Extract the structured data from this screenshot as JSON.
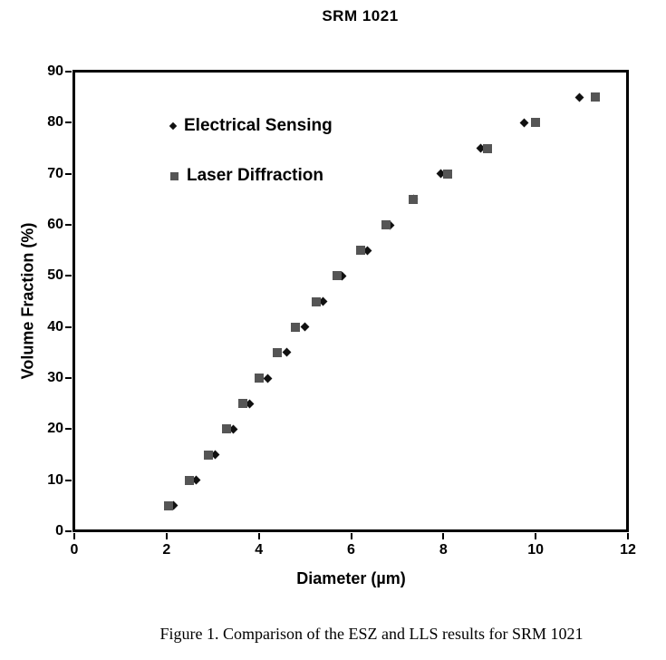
{
  "page": {
    "caption": "Figure 1. Comparison of the ESZ and LLS results for SRM 1021"
  },
  "chart_data": {
    "type": "scatter",
    "title": "SRM 1021",
    "xlabel": "Diameter (µm)",
    "ylabel": "Volume Fraction (%)",
    "xlim": [
      0,
      12
    ],
    "ylim": [
      0,
      90
    ],
    "x_ticks": [
      0,
      2,
      4,
      6,
      8,
      10,
      12
    ],
    "y_ticks": [
      0,
      10,
      20,
      30,
      40,
      50,
      60,
      70,
      80,
      90
    ],
    "grid": false,
    "legend_position": "upper-left-inside",
    "series": [
      {
        "name": "Electrical Sensing",
        "marker": "diamond",
        "color": "#111111",
        "points": [
          {
            "x": 2.15,
            "y": 5
          },
          {
            "x": 2.65,
            "y": 10
          },
          {
            "x": 3.05,
            "y": 15
          },
          {
            "x": 3.45,
            "y": 20
          },
          {
            "x": 3.8,
            "y": 25
          },
          {
            "x": 4.2,
            "y": 30
          },
          {
            "x": 4.6,
            "y": 35
          },
          {
            "x": 5.0,
            "y": 40
          },
          {
            "x": 5.4,
            "y": 45
          },
          {
            "x": 5.8,
            "y": 50
          },
          {
            "x": 6.35,
            "y": 55
          },
          {
            "x": 6.85,
            "y": 60
          },
          {
            "x": 7.35,
            "y": 65
          },
          {
            "x": 7.95,
            "y": 70
          },
          {
            "x": 8.8,
            "y": 75
          },
          {
            "x": 9.75,
            "y": 80
          },
          {
            "x": 10.95,
            "y": 85
          }
        ]
      },
      {
        "name": "Laser Diffraction",
        "marker": "square",
        "color": "#555555",
        "points": [
          {
            "x": 2.05,
            "y": 5
          },
          {
            "x": 2.5,
            "y": 10
          },
          {
            "x": 2.9,
            "y": 15
          },
          {
            "x": 3.3,
            "y": 20
          },
          {
            "x": 3.65,
            "y": 25
          },
          {
            "x": 4.0,
            "y": 30
          },
          {
            "x": 4.4,
            "y": 35
          },
          {
            "x": 4.8,
            "y": 40
          },
          {
            "x": 5.25,
            "y": 45
          },
          {
            "x": 5.7,
            "y": 50
          },
          {
            "x": 6.2,
            "y": 55
          },
          {
            "x": 6.75,
            "y": 60
          },
          {
            "x": 7.35,
            "y": 65
          },
          {
            "x": 8.1,
            "y": 70
          },
          {
            "x": 8.95,
            "y": 75
          },
          {
            "x": 10.0,
            "y": 80
          },
          {
            "x": 11.3,
            "y": 85
          }
        ]
      }
    ]
  }
}
